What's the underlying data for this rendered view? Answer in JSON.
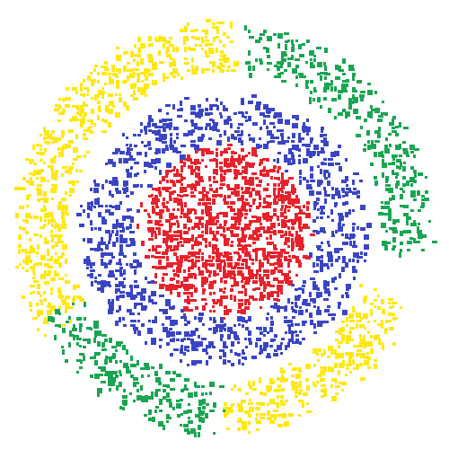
{
  "image": {
    "description_hidden": "",
    "background": "#ffffff",
    "palette": {
      "red": "#e8222c",
      "blue": "#3a45c4",
      "green": "#1aa552",
      "yellow": "#ffe812"
    },
    "bands": [
      {
        "name": "red-core",
        "color_key": "red",
        "density": 0.5
      },
      {
        "name": "blue-ring",
        "color_key": "blue",
        "density": 0.32
      },
      {
        "name": "yellow-arc-upper-left",
        "color_key": "yellow",
        "density": 0.36
      },
      {
        "name": "green-arc-upper-right",
        "color_key": "green",
        "density": 0.32
      },
      {
        "name": "yellow-arc-lower-right",
        "color_key": "yellow",
        "density": 0.34
      },
      {
        "name": "green-arc-lower-left",
        "color_key": "green",
        "density": 0.3
      }
    ]
  }
}
